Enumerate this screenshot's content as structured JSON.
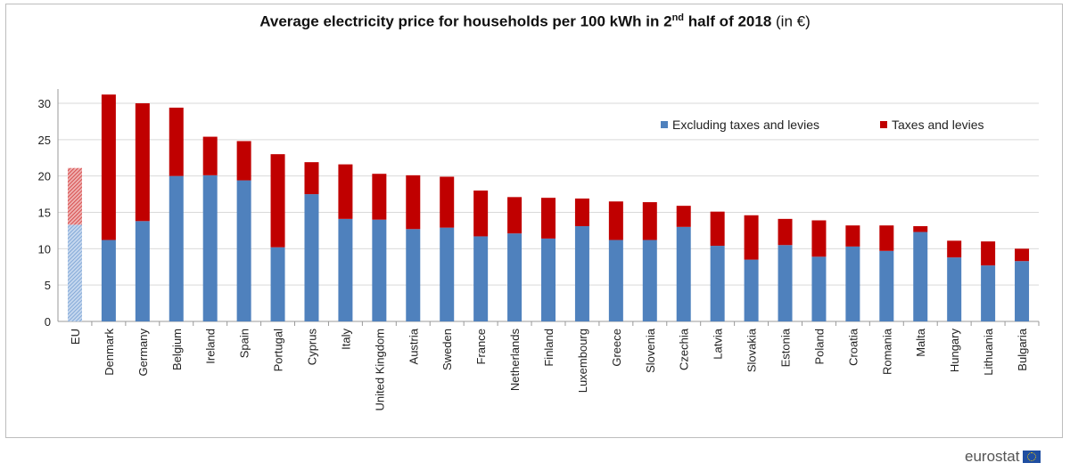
{
  "chart_data": {
    "type": "bar",
    "stacked": true,
    "title": "Average electricity price for households per 100 kWh in 2nd half of 2018",
    "title_main": "Average electricity price for households per 100 kWh in 2",
    "title_sup": "nd",
    "title_rest": " half of 2018",
    "title_unit": "(in €)",
    "xlabel": "",
    "ylabel": "",
    "ylim": [
      0,
      32
    ],
    "yticks": [
      0,
      5,
      10,
      15,
      20,
      25,
      30
    ],
    "grid": true,
    "legend_position": "top-right",
    "categories": [
      "EU",
      "Denmark",
      "Germany",
      "Belgium",
      "Ireland",
      "Spain",
      "Portugal",
      "Cyprus",
      "Italy",
      "United Kingdom",
      "Austria",
      "Sweden",
      "France",
      "Netherlands",
      "Finland",
      "Luxembourg",
      "Greece",
      "Slovenia",
      "Czechia",
      "Latvia",
      "Slovakia",
      "Estonia",
      "Poland",
      "Croatia",
      "Romania",
      "Malta",
      "Hungary",
      "Lithuania",
      "Bulgaria"
    ],
    "series": [
      {
        "name": "Excluding taxes and levies",
        "color": "#4f81bd",
        "values": [
          13.3,
          11.2,
          13.8,
          20.0,
          20.1,
          19.4,
          10.2,
          17.5,
          14.1,
          14.0,
          12.7,
          12.9,
          11.7,
          12.1,
          11.4,
          13.1,
          11.2,
          11.2,
          13.0,
          10.4,
          8.5,
          10.5,
          8.9,
          10.3,
          9.7,
          12.3,
          8.8,
          7.7,
          8.3
        ]
      },
      {
        "name": "Taxes and levies",
        "color": "#c00000",
        "values": [
          7.8,
          20.0,
          16.2,
          9.4,
          5.3,
          5.4,
          12.8,
          4.4,
          7.5,
          6.3,
          7.4,
          7.0,
          6.3,
          5.0,
          5.6,
          3.8,
          5.3,
          5.2,
          2.9,
          4.7,
          6.1,
          3.6,
          5.0,
          2.9,
          3.5,
          0.8,
          2.3,
          3.3,
          1.7
        ]
      }
    ]
  },
  "footer": {
    "logo_text": "eurostat"
  }
}
